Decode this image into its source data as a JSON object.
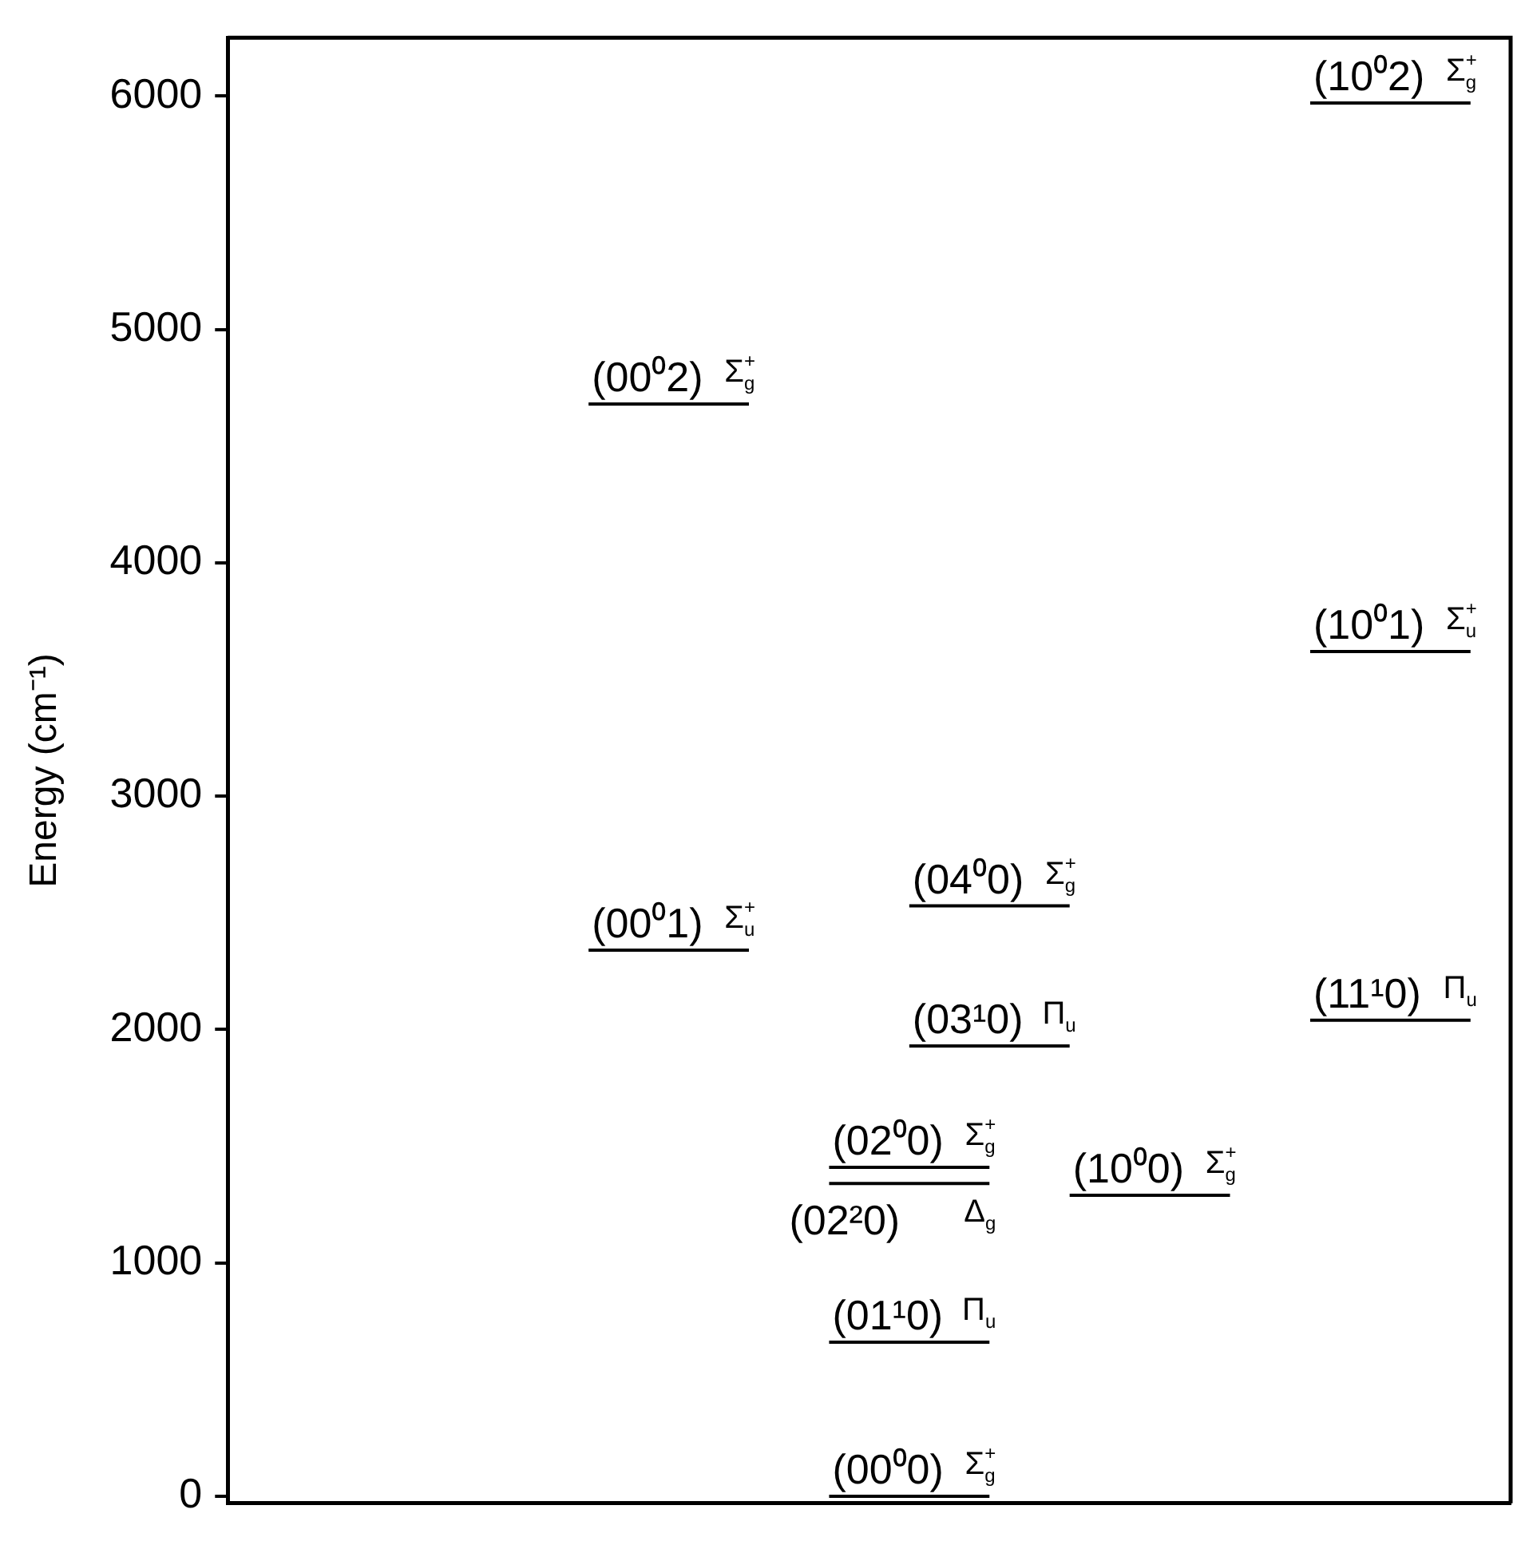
{
  "chart_data": {
    "type": "line",
    "ylabel": "Energy (cm⁻¹)",
    "categories": [
      null,
      null,
      null,
      null,
      null,
      null,
      null,
      null,
      null,
      null,
      null,
      null,
      null,
      null,
      null,
      null
    ],
    "ylim": [
      -30,
      6250
    ],
    "yticks": [
      0,
      1000,
      2000,
      3000,
      4000,
      5000,
      6000
    ],
    "grid": false,
    "legend": false,
    "tick_labels": "y",
    "marker": "none",
    "line_style": "solid",
    "series": [
      {
        "name": "(00⁰0) Σ$_{g}$$^{+}$",
        "color": "#000000",
        "values": [
          null,
          null,
          null,
          null,
          null,
          null,
          null,
          0,
          0,
          0,
          null,
          null,
          null,
          null,
          null,
          null
        ]
      },
      {
        "name": "(01¹0) Π$_{u}$",
        "color": "#000000",
        "values": [
          null,
          null,
          null,
          null,
          null,
          null,
          null,
          660,
          660,
          660,
          null,
          null,
          null,
          null,
          null,
          null
        ]
      },
      {
        "name": "(02²0) Δ$_{g}$",
        "color": "#000000",
        "values": [
          null,
          null,
          null,
          null,
          null,
          null,
          null,
          1340,
          1340,
          1340,
          null,
          null,
          null,
          null,
          null,
          null
        ]
      },
      {
        "name": "(02⁰0) Σ$_{g}$$^{+}$",
        "color": "#000000",
        "values": [
          null,
          null,
          null,
          null,
          null,
          null,
          null,
          1410,
          1410,
          1410,
          null,
          null,
          null,
          null,
          null,
          null
        ]
      },
      {
        "name": "(10⁰0) Σ$_{g}$$^{+}$",
        "color": "#000000",
        "values": [
          null,
          null,
          null,
          null,
          null,
          null,
          null,
          null,
          null,
          null,
          1290,
          1290,
          1290,
          null,
          null,
          null
        ]
      },
      {
        "name": "(03¹0) Π$_{u}$",
        "color": "#000000",
        "values": [
          null,
          null,
          null,
          null,
          null,
          null,
          null,
          null,
          1930,
          1930,
          1930,
          null,
          null,
          null,
          null,
          null
        ]
      },
      {
        "name": "(04⁰0) Σ$_{g}$$^{+}$",
        "color": "#000000",
        "values": [
          null,
          null,
          null,
          null,
          null,
          null,
          null,
          null,
          2530,
          2530,
          2530,
          null,
          null,
          null,
          null,
          null
        ]
      },
      {
        "name": "(00⁰1) Σ$_{u}$$^{+}$",
        "color": "#000000",
        "values": [
          null,
          null,
          null,
          null,
          2340,
          2340,
          2340,
          null,
          null,
          null,
          null,
          null,
          null,
          null,
          null,
          null
        ]
      },
      {
        "name": "(00⁰2) Σ$_{g}$$^{+}$",
        "color": "#000000",
        "values": [
          null,
          null,
          null,
          null,
          4680,
          4680,
          4680,
          null,
          null,
          null,
          null,
          null,
          null,
          null,
          null,
          null
        ]
      },
      {
        "name": "(11¹0) Π$_{u}$",
        "color": "#000000",
        "values": [
          null,
          null,
          null,
          null,
          null,
          null,
          null,
          null,
          null,
          null,
          null,
          null,
          null,
          2040,
          2040,
          2040
        ]
      },
      {
        "name": "(10⁰1) Σ$_{u}$$^{+}$",
        "color": "#000000",
        "values": [
          null,
          null,
          null,
          null,
          null,
          null,
          null,
          null,
          null,
          null,
          null,
          null,
          null,
          3620,
          3620,
          3620
        ]
      },
      {
        "name": "(10⁰2) Σ$_{g}$$^{+}$",
        "color": "#000000",
        "values": [
          null,
          null,
          null,
          null,
          null,
          null,
          null,
          null,
          null,
          null,
          null,
          null,
          null,
          5970,
          5970,
          5970
        ]
      }
    ]
  }
}
